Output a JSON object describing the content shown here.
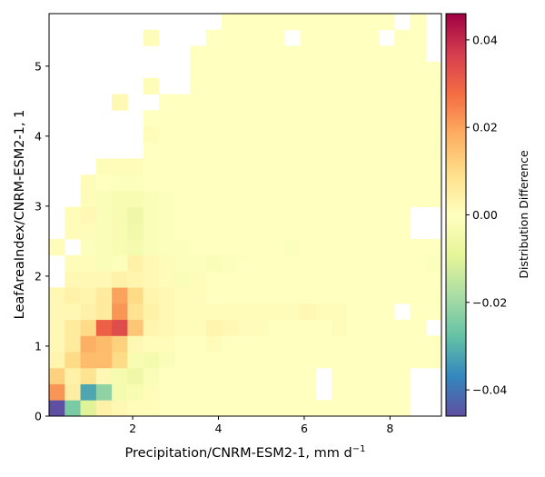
{
  "chart_data": {
    "type": "heatmap",
    "title": "",
    "xlabel": "Precipitation/CNRM-ESM2-1,  mm d",
    "xlabel_sup": "−1",
    "ylabel": "LeafAreaIndex/CNRM-ESM2-1,  1",
    "colorbar_label": "Distribution Difference",
    "xlim": [
      0.05,
      9.2
    ],
    "ylim": [
      0,
      5.75
    ],
    "x_ticks": [
      2,
      4,
      6,
      8
    ],
    "y_ticks": [
      0,
      1,
      2,
      3,
      4,
      5
    ],
    "clim": [
      -0.046,
      0.046
    ],
    "colorbar_ticks": [
      -0.04,
      -0.02,
      0.0,
      0.02,
      0.04
    ],
    "colorbar_tick_labels": [
      "−0.04",
      "−0.02",
      "0.00",
      "0.02",
      "0.04"
    ],
    "colormap": "Spectral_r",
    "colormap_stops": [
      "#5e4fa2",
      "#3288bd",
      "#66c2a5",
      "#abdda4",
      "#e6f598",
      "#ffffbf",
      "#fee08b",
      "#fdae61",
      "#f46d43",
      "#d53e4f",
      "#9e0142"
    ],
    "grid": false,
    "bins_x": {
      "start": 0.05,
      "width": 0.366,
      "count": 25
    },
    "bins_y": {
      "start": 0.0,
      "width": 0.23,
      "count": 25
    },
    "cells_note": "z[j][i]: j = y-bin index from bottom, i = x-bin index from left; null = no data",
    "z": [
      [
        -0.046,
        -0.025,
        -0.01,
        0.004,
        0.002,
        0.001,
        0.001,
        0.0,
        0.0,
        0.0,
        0.0,
        0.0,
        0.0,
        0.0,
        0.0,
        0.0,
        0.0,
        0.0,
        0.0,
        0.0,
        0.0,
        0.0,
        0.0,
        null,
        null
      ],
      [
        0.022,
        0.005,
        -0.032,
        -0.022,
        -0.004,
        -0.003,
        0.001,
        0.0,
        0.0,
        0.0,
        0.0,
        0.0,
        0.0,
        0.0,
        0.0,
        0.0,
        0.0,
        null,
        0.0,
        0.0,
        0.0,
        0.0,
        0.0,
        null,
        null
      ],
      [
        0.012,
        0.004,
        0.008,
        0.002,
        -0.004,
        -0.006,
        -0.002,
        0.0,
        0.0,
        0.0,
        0.0,
        0.0,
        0.0,
        0.0,
        0.0,
        0.0,
        0.0,
        null,
        0.0,
        0.0,
        0.0,
        0.0,
        0.0,
        null,
        null
      ],
      [
        0.003,
        0.01,
        0.016,
        0.016,
        0.01,
        -0.003,
        -0.004,
        -0.002,
        0.0,
        0.0,
        0.0,
        0.0,
        0.0,
        0.0,
        0.0,
        0.0,
        0.0,
        0.0,
        0.0,
        0.0,
        0.0,
        0.0,
        0.0,
        0.0,
        0.0
      ],
      [
        0.002,
        0.006,
        0.018,
        0.016,
        0.012,
        0.002,
        0.001,
        0.001,
        0.0,
        0.0,
        0.001,
        0.0,
        0.0,
        0.0,
        0.0,
        0.0,
        0.0,
        0.0,
        0.0,
        0.0,
        0.0,
        0.0,
        0.0,
        0.0,
        0.0
      ],
      [
        0.002,
        0.006,
        0.01,
        0.03,
        0.034,
        0.014,
        0.003,
        0.002,
        0.001,
        0.001,
        0.003,
        0.002,
        0.001,
        0.001,
        0.0,
        0.0,
        0.0,
        0.0,
        0.001,
        0.0,
        0.0,
        0.0,
        0.0,
        0.0,
        null
      ],
      [
        0.002,
        0.002,
        0.004,
        0.006,
        0.022,
        0.008,
        0.004,
        0.002,
        0.001,
        0.001,
        0.001,
        0.001,
        0.001,
        0.001,
        0.001,
        0.001,
        0.002,
        0.001,
        0.001,
        0.0,
        0.0,
        0.0,
        null,
        0.0,
        0.0
      ],
      [
        0.002,
        0.004,
        0.003,
        0.006,
        0.02,
        0.01,
        0.003,
        0.002,
        0.001,
        0.001,
        0.0,
        0.0,
        0.0,
        0.0,
        0.0,
        0.0,
        0.0,
        0.0,
        0.0,
        0.0,
        0.0,
        0.0,
        0.0,
        0.0,
        0.0
      ],
      [
        null,
        0.002,
        0.002,
        0.002,
        0.004,
        0.003,
        0.002,
        0.001,
        -0.002,
        0.001,
        0.0,
        0.0,
        0.0,
        0.0,
        0.0,
        0.0,
        0.0,
        0.0,
        0.0,
        0.0,
        0.0,
        0.0,
        0.0,
        0.0,
        0.0
      ],
      [
        null,
        0.001,
        0.001,
        -0.002,
        -0.001,
        0.004,
        0.002,
        0.001,
        -0.001,
        -0.001,
        -0.002,
        -0.001,
        0.0,
        0.0,
        0.0,
        0.0,
        0.0,
        0.0,
        0.0,
        0.0,
        0.0,
        0.0,
        0.0,
        0.0,
        -0.001
      ],
      [
        0.001,
        null,
        -0.001,
        -0.002,
        -0.003,
        -0.004,
        -0.002,
        -0.001,
        -0.001,
        0.0,
        0.0,
        0.0,
        0.0,
        0.0,
        0.0,
        -0.001,
        0.0,
        0.0,
        0.0,
        0.0,
        0.0,
        0.0,
        0.0,
        0.0,
        0.0
      ],
      [
        null,
        0.001,
        0.001,
        -0.002,
        -0.003,
        -0.005,
        -0.002,
        -0.001,
        0.0,
        0.0,
        0.0,
        0.0,
        0.0,
        0.0,
        0.0,
        0.0,
        0.0,
        0.0,
        0.0,
        0.0,
        0.0,
        0.0,
        0.0,
        null,
        null
      ],
      [
        null,
        0.001,
        0.002,
        -0.002,
        -0.003,
        -0.006,
        -0.002,
        -0.001,
        0.0,
        0.0,
        0.0,
        0.0,
        0.0,
        0.0,
        0.0,
        0.0,
        0.0,
        0.0,
        0.0,
        0.0,
        0.0,
        0.0,
        0.0,
        null,
        null
      ],
      [
        null,
        null,
        0.001,
        -0.002,
        -0.003,
        -0.003,
        -0.002,
        -0.001,
        0.0,
        0.0,
        0.0,
        0.0,
        0.0,
        0.0,
        0.0,
        0.0,
        0.0,
        0.0,
        0.0,
        0.0,
        0.0,
        0.0,
        0.0,
        0.0,
        0.0
      ],
      [
        null,
        null,
        0.001,
        0.0,
        -0.001,
        -0.001,
        0.0,
        0.0,
        0.0,
        0.0,
        0.0,
        0.0,
        0.0,
        0.0,
        0.0,
        0.0,
        0.0,
        0.0,
        0.0,
        0.0,
        0.0,
        0.0,
        0.0,
        0.0,
        0.0
      ],
      [
        null,
        null,
        null,
        0.001,
        0.001,
        0.001,
        0.0,
        0.0,
        0.0,
        0.0,
        0.0,
        0.0,
        0.0,
        0.0,
        0.0,
        0.0,
        0.0,
        0.0,
        0.0,
        0.0,
        0.0,
        0.0,
        0.0,
        0.0,
        0.0
      ],
      [
        null,
        null,
        null,
        null,
        null,
        null,
        0.0,
        0.0,
        0.0,
        0.0,
        0.0,
        0.0,
        0.0,
        0.0,
        0.0,
        0.0,
        0.0,
        0.0,
        0.0,
        0.0,
        0.0,
        0.0,
        0.0,
        0.0,
        0.0
      ],
      [
        null,
        null,
        null,
        null,
        null,
        null,
        0.001,
        0.0,
        0.0,
        0.0,
        0.0,
        0.0,
        0.0,
        0.0,
        0.0,
        0.0,
        0.0,
        0.0,
        0.0,
        0.0,
        0.0,
        0.0,
        0.0,
        0.0,
        0.0
      ],
      [
        null,
        null,
        null,
        null,
        null,
        null,
        0.0,
        0.0,
        0.0,
        0.0,
        0.0,
        0.0,
        0.0,
        0.0,
        0.0,
        0.0,
        0.0,
        0.0,
        0.0,
        0.0,
        0.0,
        0.0,
        0.0,
        0.0,
        0.0
      ],
      [
        null,
        null,
        null,
        null,
        0.002,
        null,
        null,
        0.0,
        0.0,
        0.0,
        0.0,
        0.0,
        0.0,
        0.0,
        0.0,
        0.0,
        0.0,
        0.0,
        0.0,
        0.0,
        0.0,
        0.0,
        0.0,
        0.0,
        0.0
      ],
      [
        null,
        null,
        null,
        null,
        null,
        null,
        0.001,
        null,
        null,
        0.0,
        0.0,
        0.0,
        0.0,
        0.0,
        0.0,
        0.0,
        0.0,
        0.0,
        0.0,
        0.0,
        0.0,
        0.0,
        0.0,
        0.0,
        0.0
      ],
      [
        null,
        null,
        null,
        null,
        null,
        null,
        null,
        null,
        null,
        0.0,
        0.0,
        0.0,
        0.0,
        0.0,
        0.0,
        0.0,
        0.0,
        0.0,
        0.0,
        0.0,
        0.0,
        0.0,
        0.0,
        0.0,
        0.0
      ],
      [
        null,
        null,
        null,
        null,
        null,
        null,
        null,
        null,
        null,
        0.0,
        0.0,
        0.0,
        0.0,
        0.0,
        0.0,
        0.0,
        0.0,
        0.0,
        0.0,
        0.0,
        0.0,
        0.0,
        0.0,
        0.0,
        null
      ],
      [
        null,
        null,
        null,
        null,
        null,
        null,
        0.001,
        null,
        null,
        null,
        0.0,
        0.0,
        0.0,
        0.0,
        0.0,
        null,
        0.0,
        0.0,
        0.0,
        0.0,
        0.0,
        null,
        0.0,
        0.0,
        null
      ],
      [
        null,
        null,
        null,
        null,
        null,
        null,
        null,
        null,
        null,
        null,
        null,
        0.0,
        0.0,
        0.0,
        0.0,
        0.0,
        0.0,
        0.0,
        0.0,
        0.0,
        0.0,
        0.0,
        null,
        0.0,
        null
      ]
    ]
  }
}
